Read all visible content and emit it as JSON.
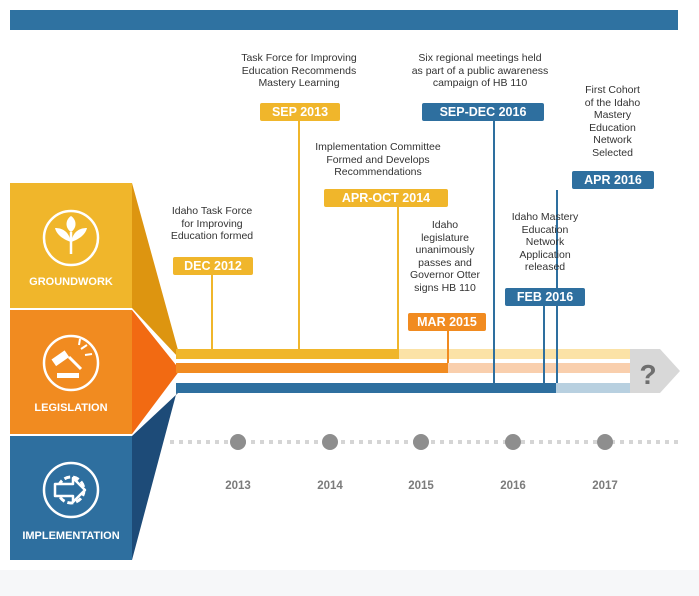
{
  "colors": {
    "navy": "#2f72a1",
    "yellow": "#f0b62b",
    "orange": "#f18b20",
    "blue": "#2e6f9f",
    "light_yellow": "#fbe2a6",
    "light_orange": "#f9cfad",
    "light_blue": "#b8d0e0",
    "gray": "#d9d9d9"
  },
  "phases": [
    {
      "label": "GROUNDWORK",
      "icon": "sprout-icon"
    },
    {
      "label": "LEGISLATION",
      "icon": "gavel-icon"
    },
    {
      "label": "IMPLEMENTATION",
      "icon": "gear-arrow-icon"
    }
  ],
  "events": [
    {
      "badge": "DEC 2012",
      "lines": [
        "Idaho Task Force",
        "for Improving",
        "Education formed"
      ]
    },
    {
      "badge": "SEP 2013",
      "lines": [
        "Task Force for Improving",
        "Education Recommends",
        "Mastery Learning"
      ]
    },
    {
      "badge": "APR-OCT 2014",
      "lines": [
        "Implementation Committee",
        "Formed and Develops",
        "Recommendations"
      ]
    },
    {
      "badge": "MAR 2015",
      "lines": [
        "Idaho",
        "legislature",
        "unanimously",
        "passes and",
        "Governor Otter",
        "signs HB 110"
      ]
    },
    {
      "badge": "SEP-DEC 2016",
      "lines": [
        "Six regional meetings held",
        "as part of a public awareness",
        "campaign of HB 110"
      ]
    },
    {
      "badge": "FEB 2016",
      "lines": [
        "Idaho Mastery",
        "Education",
        "Network",
        "Application",
        "released"
      ]
    },
    {
      "badge": "APR 2016",
      "lines": [
        "First Cohort",
        "of the Idaho",
        "Mastery",
        "Education",
        "Network",
        "Selected"
      ]
    }
  ],
  "future_mark": "?",
  "years": [
    "2013",
    "2014",
    "2015",
    "2016",
    "2017"
  ]
}
